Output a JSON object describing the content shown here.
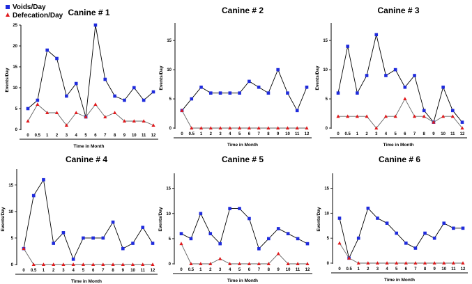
{
  "legend": {
    "voids_label": "Voids/Day",
    "defecation_label": "Defecation/Day",
    "voids_color": "#1f2bdc",
    "defecation_color": "#e0191c",
    "line_color": "#000000",
    "defecation_line_color": "#666666"
  },
  "chart_data": [
    {
      "type": "line",
      "title": "Canine # 1",
      "xlabel": "Time in Month",
      "ylabel": "Events/Day",
      "categories": [
        "0",
        "0.5",
        "1",
        "2",
        "3",
        "4",
        "5",
        "6",
        "7",
        "8",
        "9",
        "10",
        "11",
        "12"
      ],
      "ylim": [
        0,
        25
      ],
      "yticks": [
        "0",
        "5",
        "10",
        "15",
        "20",
        "25"
      ],
      "series": [
        {
          "name": "Voids/Day",
          "values": [
            5,
            7,
            19,
            17,
            8,
            11,
            3,
            25,
            12,
            8,
            7,
            10,
            7,
            9
          ]
        },
        {
          "name": "Defecation/Day",
          "values": [
            2,
            6,
            4,
            4,
            1,
            4,
            3,
            6,
            3,
            4,
            2,
            2,
            2,
            1
          ]
        }
      ]
    },
    {
      "type": "line",
      "title": "Canine # 2",
      "xlabel": "Time in Month",
      "ylabel": "Events/Day",
      "categories": [
        "0",
        "0.5",
        "1",
        "2",
        "3",
        "4",
        "5",
        "6",
        "7",
        "8",
        "9",
        "10",
        "11",
        "12"
      ],
      "ylim": [
        0,
        18
      ],
      "yticks": [
        "0",
        "5",
        "10",
        "15"
      ],
      "series": [
        {
          "name": "Voids/Day",
          "values": [
            3,
            5,
            7,
            6,
            6,
            6,
            6,
            8,
            7,
            6,
            10,
            6,
            3,
            7
          ]
        },
        {
          "name": "Defecation/Day",
          "values": [
            3,
            0,
            0,
            0,
            0,
            0,
            0,
            0,
            0,
            0,
            0,
            0,
            0,
            0
          ]
        }
      ]
    },
    {
      "type": "line",
      "title": "Canine # 3",
      "xlabel": "Time in Month",
      "ylabel": "Events/Day",
      "categories": [
        "0",
        "0.5",
        "1",
        "2",
        "3",
        "4",
        "5",
        "6",
        "7",
        "8",
        "9",
        "10",
        "11",
        "12"
      ],
      "ylim": [
        0,
        18
      ],
      "yticks": [
        "0",
        "5",
        "10",
        "15"
      ],
      "series": [
        {
          "name": "Voids/Day",
          "values": [
            6,
            14,
            6,
            9,
            16,
            9,
            10,
            7,
            9,
            3,
            1,
            7,
            3,
            1
          ]
        },
        {
          "name": "Defecation/Day",
          "values": [
            2,
            2,
            2,
            2,
            0,
            2,
            2,
            5,
            2,
            2,
            1,
            2,
            2,
            0
          ]
        }
      ]
    },
    {
      "type": "line",
      "title": "Canine # 4",
      "xlabel": "Time in Month",
      "ylabel": "Events/Day",
      "categories": [
        "0",
        "0.5",
        "1",
        "2",
        "3",
        "4",
        "5",
        "6",
        "7",
        "8",
        "9",
        "10",
        "11",
        "12"
      ],
      "ylim": [
        0,
        18
      ],
      "yticks": [
        "0",
        "5",
        "10",
        "15"
      ],
      "series": [
        {
          "name": "Voids/Day",
          "values": [
            3,
            13,
            16,
            4,
            6,
            1,
            5,
            5,
            5,
            8,
            3,
            4,
            7,
            4
          ]
        },
        {
          "name": "Defecation/Day",
          "values": [
            3,
            0,
            0,
            0,
            0,
            0,
            0,
            0,
            0,
            0,
            0,
            0,
            0,
            0
          ]
        }
      ]
    },
    {
      "type": "line",
      "title": "Canine # 5",
      "xlabel": "Time in Month",
      "ylabel": "Events/Day",
      "categories": [
        "0",
        "0.5",
        "1",
        "2",
        "3",
        "4",
        "5",
        "6",
        "7",
        "8",
        "9",
        "10",
        "11",
        "12"
      ],
      "ylim": [
        0,
        18
      ],
      "yticks": [
        "0",
        "5",
        "10",
        "15"
      ],
      "series": [
        {
          "name": "Voids/Day",
          "values": [
            6,
            5,
            10,
            6,
            4,
            11,
            11,
            9,
            3,
            5,
            7,
            6,
            5,
            4
          ]
        },
        {
          "name": "Defecation/Day",
          "values": [
            4,
            0,
            0,
            0,
            1,
            0,
            0,
            0,
            0,
            0,
            2,
            0,
            0,
            0
          ]
        }
      ]
    },
    {
      "type": "line",
      "title": "Canine # 6",
      "xlabel": "Time in Month",
      "ylabel": "Events/Day",
      "categories": [
        "0",
        "0.5",
        "1",
        "2",
        "3",
        "4",
        "5",
        "6",
        "7",
        "8",
        "9",
        "10",
        "11",
        "12"
      ],
      "ylim": [
        0,
        18
      ],
      "yticks": [
        "0",
        "5",
        "10",
        "15"
      ],
      "series": [
        {
          "name": "Voids/Day",
          "values": [
            9,
            1,
            5,
            11,
            9,
            8,
            6,
            4,
            3,
            6,
            5,
            8,
            7,
            7
          ]
        },
        {
          "name": "Defecation/Day",
          "values": [
            4,
            1,
            0,
            0,
            0,
            0,
            0,
            0,
            0,
            0,
            0,
            0,
            0,
            0
          ]
        }
      ]
    }
  ]
}
